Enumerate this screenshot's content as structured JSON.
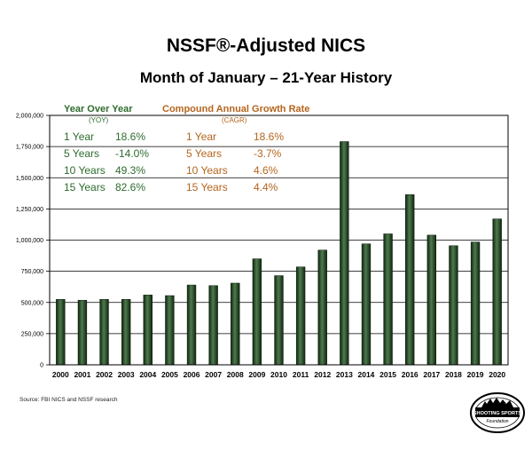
{
  "title": "NSSF®-Adjusted NICS",
  "subtitle": "Month of January – 21-Year History",
  "source": "Source: FBI NICS and NSSF research",
  "logo": {
    "line1": "National",
    "line2": "SHOOTING SPORTS",
    "line3": "Foundation",
    "icon": "nssf-logo-icon"
  },
  "colors": {
    "bar": "#1f3d1f",
    "bar_highlight": "#5f8a5f",
    "yoy": "#2e6b2e",
    "cagr": "#b5651d"
  },
  "yoy_table": {
    "heading": "Year Over Year",
    "abbr": "(YOY)",
    "rows": [
      {
        "period": "1 Year",
        "value": "18.6%"
      },
      {
        "period": "5 Years",
        "value": "-14.0%"
      },
      {
        "period": "10 Years",
        "value": "49.3%"
      },
      {
        "period": "15 Years",
        "value": "82.6%"
      }
    ]
  },
  "cagr_table": {
    "heading": "Compound Annual Growth Rate",
    "abbr": "(CAGR)",
    "rows": [
      {
        "period": "1 Year",
        "value": "18.6%"
      },
      {
        "period": "5 Years",
        "value": "-3.7%"
      },
      {
        "period": "10 Years",
        "value": "4.6%"
      },
      {
        "period": "15 Years",
        "value": "4.4%"
      }
    ]
  },
  "chart_data": {
    "type": "bar",
    "title": "NSSF®-Adjusted NICS",
    "subtitle": "Month of January – 21-Year History",
    "xlabel": "",
    "ylabel": "",
    "categories": [
      "2000",
      "2001",
      "2002",
      "2003",
      "2004",
      "2005",
      "2006",
      "2007",
      "2008",
      "2009",
      "2010",
      "2011",
      "2012",
      "2013",
      "2014",
      "2015",
      "2016",
      "2017",
      "2018",
      "2019",
      "2020"
    ],
    "values": [
      525000,
      518000,
      525000,
      525000,
      560000,
      555000,
      640000,
      635000,
      655000,
      850000,
      715000,
      785000,
      920000,
      1790000,
      970000,
      1050000,
      1365000,
      1040000,
      955000,
      985000,
      1170000
    ],
    "ylim": [
      0,
      2000000
    ],
    "yticks": [
      0,
      250000,
      500000,
      750000,
      1000000,
      1250000,
      1500000,
      1750000,
      2000000
    ],
    "ytick_labels": [
      "0",
      "250,000",
      "500,000",
      "750,000",
      "1,000,000",
      "1,250,000",
      "1,500,000",
      "1,750,000",
      "2,000,000"
    ],
    "grid": true
  }
}
